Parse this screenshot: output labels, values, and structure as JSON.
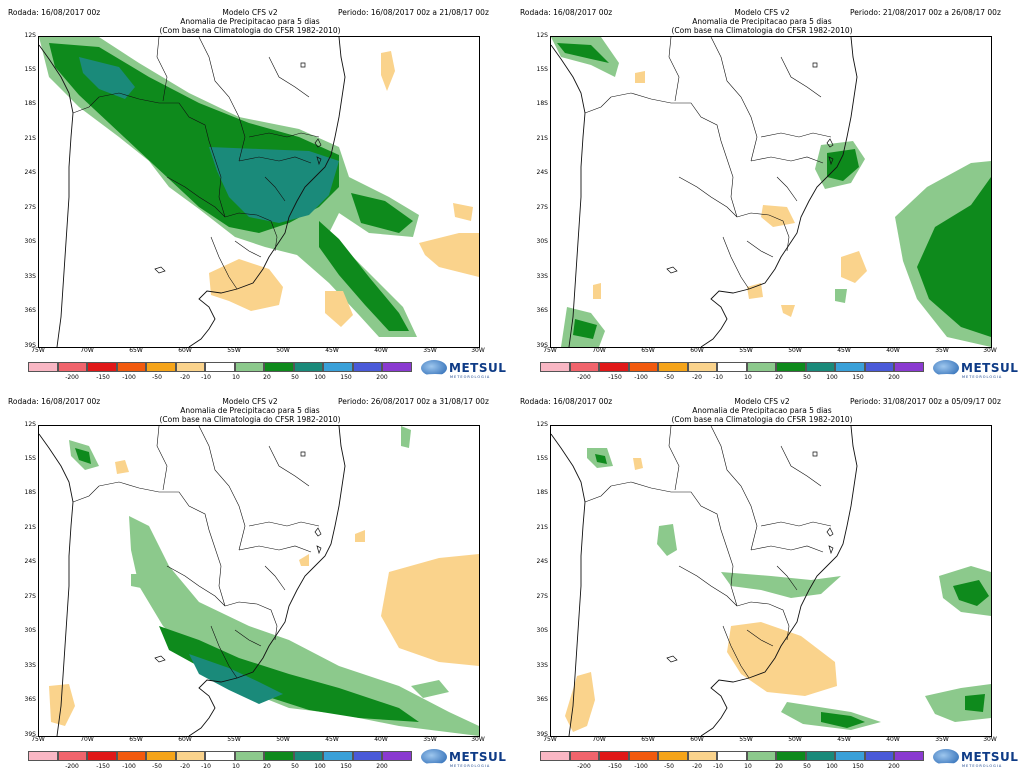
{
  "panels": [
    {
      "run_label": "Rodada: 16/08/2017 00z",
      "model": "Modelo CFS v2",
      "title": "Anomalia de Precipitacao para 5 dias",
      "subtitle": "(Com base na Climatologia do CFSR 1982-2010)",
      "period": "Periodo: 16/08/2017 00z a 21/08/17 00z"
    },
    {
      "run_label": "Rodada: 16/08/2017 00z",
      "model": "Modelo CFS v2",
      "title": "Anomalia de Precipitacao para 5 dias",
      "subtitle": "(Com base na Climatologia do CFSR 1982-2010)",
      "period": "Periodo: 21/08/2017 00z a 26/08/17 00z"
    },
    {
      "run_label": "Rodada: 16/08/2017 00z",
      "model": "Modelo CFS v2",
      "title": "Anomalia de Precipitacao para 5 dias",
      "subtitle": "(Com base na Climatologia do CFSR 1982-2010)",
      "period": "Periodo: 26/08/2017 00z a 31/08/17 00z"
    },
    {
      "run_label": "Rodada: 16/08/2017 00z",
      "model": "Modelo CFS v2",
      "title": "Anomalia de Precipitacao para 5 dias",
      "subtitle": "(Com base na Climatologia do CFSR 1982-2010)",
      "period": "Periodo: 31/08/2017 00z a 05/09/17 00z"
    }
  ],
  "lat_labels": [
    "12S",
    "15S",
    "18S",
    "21S",
    "24S",
    "27S",
    "30S",
    "33S",
    "36S",
    "39S"
  ],
  "lon_labels": [
    "75W",
    "70W",
    "65W",
    "60W",
    "55W",
    "50W",
    "45W",
    "40W",
    "35W",
    "30W"
  ],
  "scale_labels": [
    "-200",
    "-150",
    "-100",
    "-50",
    "-20",
    "-10",
    "10",
    "20",
    "50",
    "100",
    "150",
    "200"
  ],
  "scale_colors": [
    "#f9b7c4",
    "#f0646c",
    "#e01818",
    "#f25a0e",
    "#f5a41a",
    "#fad38c",
    "#ffffff",
    "#8cc98c",
    "#0e8a1c",
    "#1a8a7a",
    "#3aa0d8",
    "#4a5ad8",
    "#8a3ad0"
  ],
  "colors": {
    "light_green": "#8cc98c",
    "green": "#0e8a1c",
    "teal": "#1a8a7a",
    "tan": "#fad38c",
    "blue": "#3aa0d8"
  },
  "logo": {
    "name": "METSUL",
    "tagline": "METEOROLOGIA"
  }
}
